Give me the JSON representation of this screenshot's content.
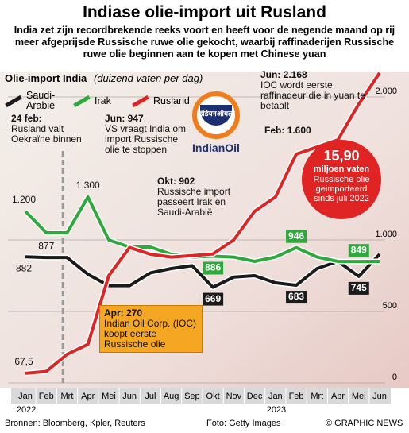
{
  "chart_data": {
    "type": "line",
    "title": "Indiase olie-import uit Rusland",
    "subtitle": "India zet zijn recordbrekende reeks voort en heeft voor de negende maand op rij meer afgeprijsde Russische ruwe olie gekocht, waarbij raffinaderijen Russische ruwe olie beginnen aan te kopen met Chinese yuan",
    "y_label": "Olie-import India",
    "y_unit": "(duizend vaten per dag)",
    "categories": [
      "Jan",
      "Feb",
      "Mrt",
      "Apr",
      "Mei",
      "Jun",
      "Jul",
      "Aug",
      "Sep",
      "Okt",
      "Nov",
      "Dec",
      "Jan",
      "Feb",
      "Mrt",
      "Apr",
      "Mei",
      "Jun"
    ],
    "years": [
      "2022",
      "2023"
    ],
    "series": [
      {
        "name": "Saudi-Arabië",
        "color": "#1a1a1a",
        "values": [
          882,
          877,
          877,
          760,
          680,
          680,
          770,
          800,
          820,
          669,
          740,
          750,
          700,
          683,
          800,
          850,
          745,
          900
        ],
        "value_labels": [
          "882",
          "877",
          null,
          null,
          null,
          null,
          null,
          null,
          null,
          "669",
          null,
          null,
          null,
          "683",
          null,
          null,
          "745",
          null
        ]
      },
      {
        "name": "Irak",
        "color": "#2eaa3c",
        "values": [
          1200,
          1050,
          1050,
          1300,
          1000,
          950,
          950,
          900,
          880,
          886,
          880,
          850,
          880,
          946,
          880,
          850,
          849,
          850
        ],
        "value_labels": [
          "1.200",
          null,
          null,
          "1.300",
          null,
          null,
          null,
          null,
          null,
          "886",
          null,
          null,
          null,
          "946",
          null,
          null,
          "849",
          null
        ]
      },
      {
        "name": "Rusland",
        "color": "#e02424",
        "values": [
          67.5,
          80,
          200,
          270,
          750,
          947,
          900,
          880,
          890,
          902,
          1000,
          1200,
          1300,
          1600,
          1650,
          1700,
          1950,
          2168
        ],
        "value_labels": [
          "67,5",
          null,
          null,
          null,
          null,
          null,
          null,
          null,
          null,
          null,
          null,
          null,
          null,
          null,
          null,
          null,
          null,
          null
        ]
      }
    ],
    "ylim": [
      0,
      2200
    ],
    "yticks": [
      0,
      500,
      {
        "value": 1000,
        "label": "1.000"
      },
      {
        "value": 2000,
        "label": "2.000"
      }
    ],
    "grid": true,
    "annotations": [
      {
        "head": "24 feb:",
        "text": "Rusland valt Oekraïne binnen"
      },
      {
        "head": "Jun: 947",
        "text": "VS vraagt India om import Russische olie te stoppen"
      },
      {
        "head": "Okt: 902",
        "text": "Russische import passeert Irak en Saudi-Arabië"
      },
      {
        "head": "Jun: 2.168",
        "text": "IOC wordt eerste raffinadeur die in yuan te betaalt"
      },
      {
        "head": "Feb: 1.600",
        "text": ""
      },
      {
        "head": "Apr: 270",
        "text": "Indian Oil Corp. (IOC) koopt eerste Russische olie"
      }
    ],
    "callout": {
      "value": "15,90",
      "unit": "miljoen vaten",
      "text": "Russische olie geimporteerd sinds juli 2022"
    },
    "logo": {
      "script": "इंडियनऑयल",
      "name": "IndianOil"
    },
    "sources": "Bronnen: Bloomberg, Kpler, Reuters",
    "photo": "Foto: Getty Images",
    "credit": "© GRAPHIC NEWS"
  }
}
